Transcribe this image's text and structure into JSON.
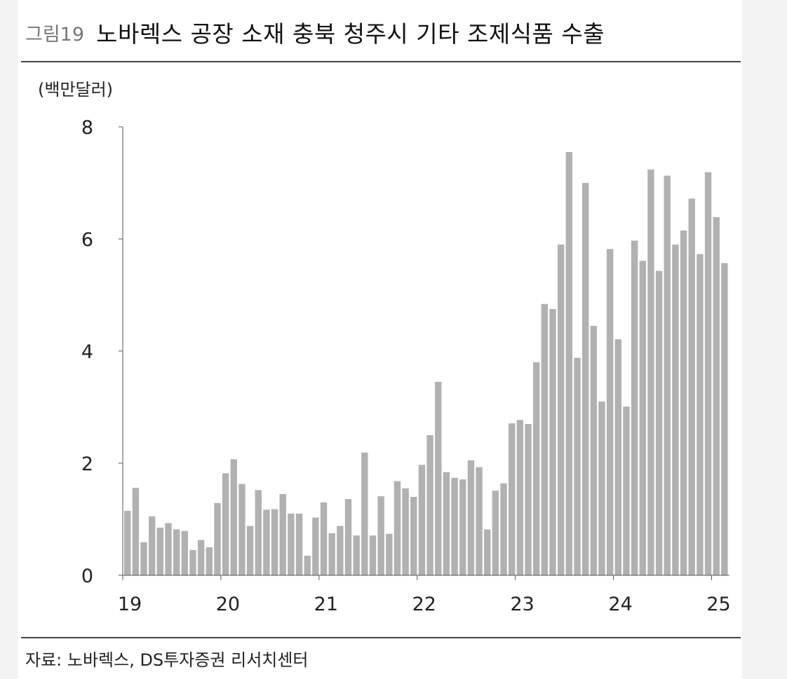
{
  "header": {
    "figure_number": "그림19",
    "title": "노바렉스 공장 소재 충북 청주시 기타 조제식품 수출"
  },
  "footer": {
    "source": "자료: 노바렉스, DS투자증권 리서치센터"
  },
  "chart_data": {
    "type": "bar",
    "title": "노바렉스 공장 소재 충북 청주시 기타 조제식품 수출",
    "unit_label": "(백만달러)",
    "ylabel": "(백만달러)",
    "xlabel": "",
    "ylim": [
      0,
      8
    ],
    "yticks": [
      0,
      2,
      4,
      6,
      8
    ],
    "xtick_labels": [
      "19",
      "20",
      "21",
      "22",
      "23",
      "24",
      "25"
    ],
    "start_month": "2019-01",
    "grid": false,
    "bar_color": "#b1b1b1",
    "values": [
      1.15,
      1.56,
      0.59,
      1.05,
      0.85,
      0.93,
      0.82,
      0.79,
      0.45,
      0.63,
      0.5,
      1.29,
      1.82,
      2.07,
      1.63,
      0.88,
      1.52,
      1.17,
      1.18,
      1.45,
      1.1,
      1.1,
      0.35,
      1.03,
      1.3,
      0.75,
      0.88,
      1.36,
      0.71,
      2.19,
      0.71,
      1.41,
      0.74,
      1.68,
      1.55,
      1.4,
      1.97,
      2.5,
      3.45,
      1.84,
      1.74,
      1.71,
      2.05,
      1.93,
      0.82,
      1.51,
      1.64,
      2.71,
      2.77,
      2.7,
      3.8,
      4.84,
      4.75,
      5.9,
      7.55,
      3.88,
      7.0,
      4.45,
      3.1,
      5.82,
      4.21,
      3.01,
      5.97,
      5.61,
      7.24,
      5.43,
      7.13,
      5.9,
      6.15,
      6.72,
      5.73,
      7.19,
      6.39,
      5.57
    ]
  }
}
